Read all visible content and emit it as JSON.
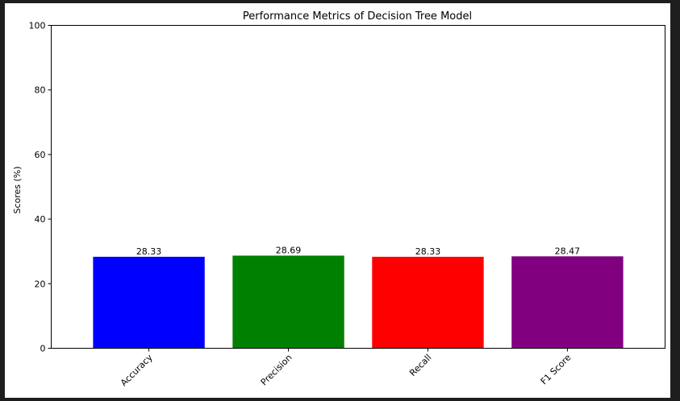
{
  "chart_data": {
    "type": "bar",
    "title": "Performance Metrics of Decision Tree Model",
    "xlabel": "",
    "ylabel": "Scores (%)",
    "categories": [
      "Accuracy",
      "Precision",
      "Recall",
      "F1 Score"
    ],
    "values": [
      28.33,
      28.69,
      28.33,
      28.47
    ],
    "value_labels": [
      "28.33",
      "28.69",
      "28.33",
      "28.47"
    ],
    "colors": [
      "#0000ff",
      "#008000",
      "#ff0000",
      "#800080"
    ],
    "ylim": [
      0,
      100
    ],
    "yticks": [
      0,
      20,
      40,
      60,
      80,
      100
    ],
    "xtick_rotation": 45,
    "grid": false,
    "legend": "none"
  }
}
